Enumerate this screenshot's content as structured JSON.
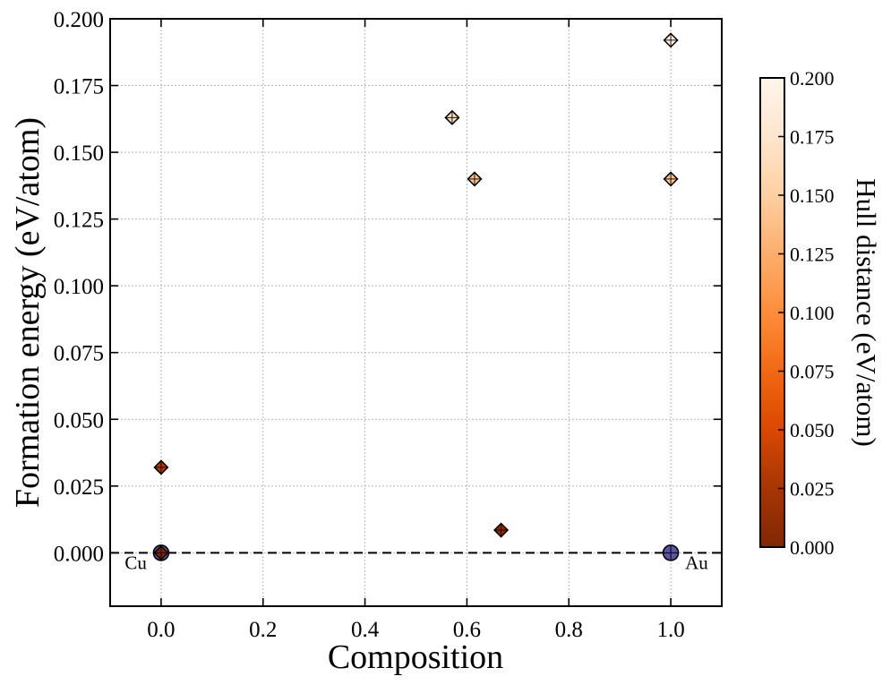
{
  "chart_data": {
    "type": "scatter",
    "title": "",
    "xlabel": "Composition",
    "ylabel": "Formation energy (eV/atom)",
    "xlim": [
      -0.1,
      1.1
    ],
    "ylim": [
      -0.02,
      0.2
    ],
    "grid": true,
    "x_ticks": [
      "0.0",
      "0.2",
      "0.4",
      "0.6",
      "0.8",
      "1.0"
    ],
    "x_tick_values": [
      0.0,
      0.2,
      0.4,
      0.6,
      0.8,
      1.0
    ],
    "y_ticks": [
      "0.000",
      "0.025",
      "0.050",
      "0.075",
      "0.100",
      "0.125",
      "0.150",
      "0.175",
      "0.200"
    ],
    "y_tick_values": [
      0.0,
      0.025,
      0.05,
      0.075,
      0.1,
      0.125,
      0.15,
      0.175,
      0.2
    ],
    "hull_line": {
      "x": [
        -0.1,
        1.1
      ],
      "y": [
        0.0,
        0.0
      ],
      "style": "dashed"
    },
    "stable_points": [
      {
        "x": 0.0,
        "y": 0.0,
        "color": "#5b54a4"
      },
      {
        "x": 1.0,
        "y": 0.0,
        "color": "#5b54a4"
      }
    ],
    "unstable_points": [
      {
        "x": 0.0,
        "y": 0.0,
        "hull_distance": 0.0
      },
      {
        "x": 0.0,
        "y": 0.032,
        "hull_distance": 0.032
      },
      {
        "x": 0.667,
        "y": 0.0085,
        "hull_distance": 0.0085
      },
      {
        "x": 0.571,
        "y": 0.163,
        "hull_distance": 0.163
      },
      {
        "x": 0.615,
        "y": 0.14,
        "hull_distance": 0.14
      },
      {
        "x": 1.0,
        "y": 0.14,
        "hull_distance": 0.14
      },
      {
        "x": 1.0,
        "y": 0.192,
        "hull_distance": 0.192
      }
    ],
    "endpoint_labels": [
      {
        "text": "Cu",
        "x": 0.0
      },
      {
        "text": "Au",
        "x": 1.0
      }
    ],
    "colorbar": {
      "label": "Hull distance (eV/atom)",
      "range": [
        0.0,
        0.2
      ],
      "ticks": [
        "0.000",
        "0.025",
        "0.050",
        "0.075",
        "0.100",
        "0.125",
        "0.150",
        "0.175",
        "0.200"
      ],
      "tick_values": [
        0.0,
        0.025,
        0.05,
        0.075,
        0.1,
        0.125,
        0.15,
        0.175,
        0.2
      ],
      "colormap": [
        "#7f2704",
        "#a63603",
        "#d94801",
        "#f16913",
        "#fd8d3c",
        "#fdae6b",
        "#fdd0a2",
        "#fee6ce",
        "#fff5eb"
      ]
    }
  }
}
